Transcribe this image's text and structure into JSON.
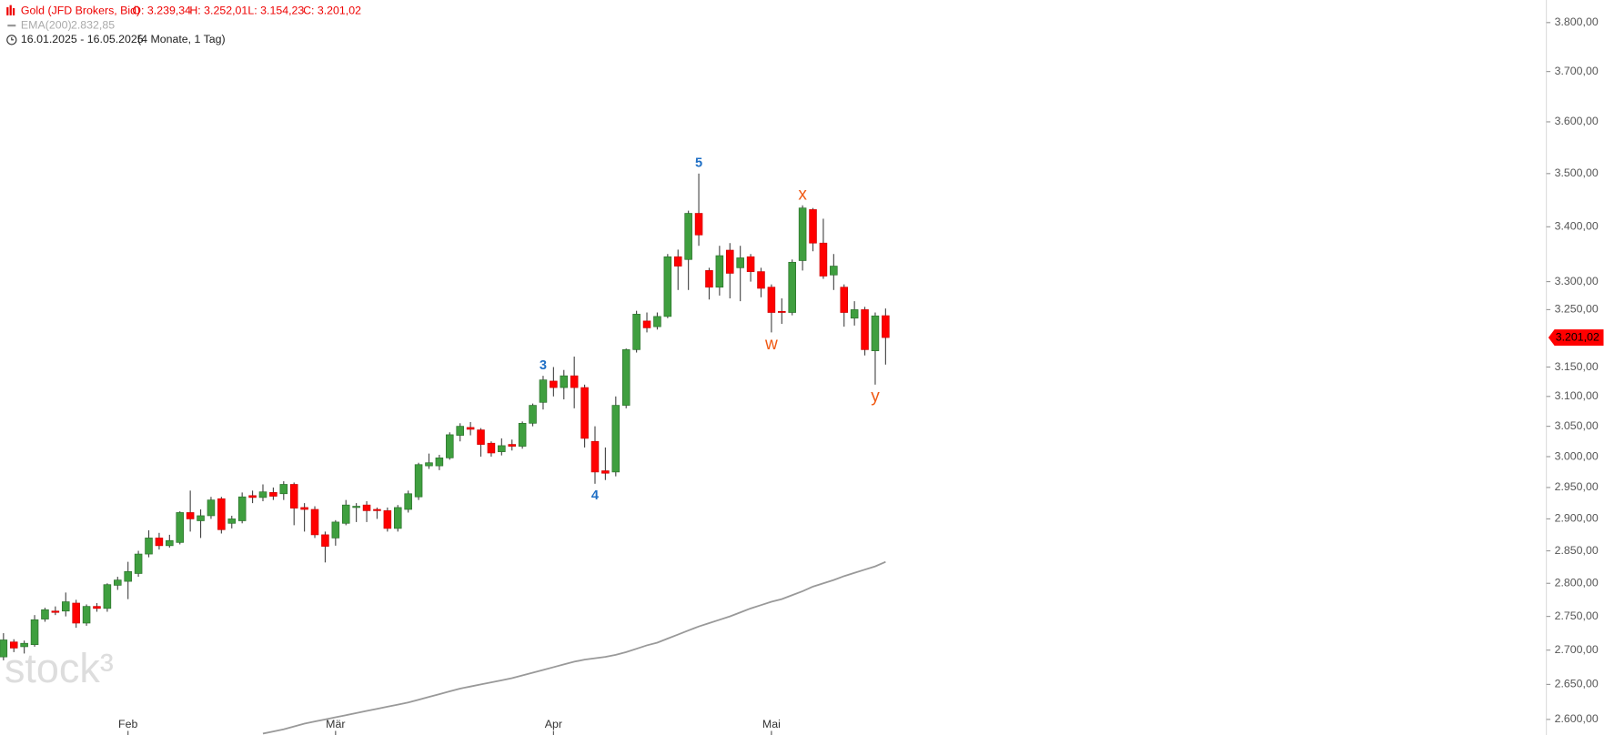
{
  "chart_data": {
    "type": "candlestick",
    "title": "Gold (JFD Brokers, Bid)",
    "ohlc_labels": [
      "O: 3.239,34",
      "H: 3.252,01",
      "L: 3.154,23",
      "C: 3.201,02"
    ],
    "period": "16.01.2025 - 16.05.2025",
    "period_note": "(4 Monate, 1 Tag)",
    "watermark": "stock³",
    "log_scale": true,
    "grid": false,
    "up_color": "#3f9f3f",
    "down_color": "#ff0000",
    "categories": [
      null,
      null,
      null,
      null,
      null,
      null,
      null,
      null,
      null,
      null,
      null,
      null,
      "Feb",
      null,
      null,
      null,
      null,
      null,
      null,
      null,
      null,
      null,
      null,
      null,
      null,
      null,
      null,
      null,
      null,
      null,
      null,
      null,
      "Mär",
      null,
      null,
      null,
      null,
      null,
      null,
      null,
      null,
      null,
      null,
      null,
      null,
      null,
      null,
      null,
      null,
      null,
      null,
      null,
      null,
      "Apr",
      null,
      null,
      null,
      null,
      null,
      null,
      null,
      null,
      null,
      null,
      null,
      null,
      null,
      null,
      null,
      null,
      null,
      null,
      null,
      null,
      "Mai",
      null,
      null,
      null,
      null,
      null,
      null,
      null,
      null,
      null,
      null,
      null
    ],
    "open": [
      2690,
      2712,
      2705,
      2708,
      2746,
      2758,
      2758,
      2770,
      2740,
      2765,
      2762,
      2797,
      2803,
      2815,
      2845,
      2870,
      2858,
      2863,
      2910,
      2897,
      2905,
      2932,
      2893,
      2897,
      2937,
      2934,
      2942,
      2940,
      2955,
      2918,
      2915,
      2875,
      2870,
      2893,
      2918,
      2922,
      2915,
      2913,
      2885,
      2915,
      2935,
      2985,
      2985,
      2998,
      3035,
      3048,
      3044,
      3022,
      3008,
      3020,
      3017,
      3055,
      3090,
      3126,
      3115,
      3135,
      3115,
      3025,
      2977,
      2975,
      3085,
      3180,
      3230,
      3220,
      3238,
      3345,
      3340,
      3425,
      3320,
      3290,
      3357,
      3325,
      3345,
      3318,
      3290,
      3247,
      3245,
      3338,
      3432,
      3370,
      3312,
      3290,
      3235,
      3250,
      3178,
      3239.34
    ],
    "high": [
      2725,
      2716,
      2714,
      2752,
      2763,
      2765,
      2786,
      2775,
      2768,
      2770,
      2800,
      2810,
      2833,
      2850,
      2882,
      2878,
      2875,
      2912,
      2945,
      2915,
      2935,
      2935,
      2905,
      2942,
      2945,
      2955,
      2950,
      2960,
      2958,
      2925,
      2920,
      2880,
      2898,
      2930,
      2925,
      2928,
      2918,
      2918,
      2922,
      2945,
      2990,
      3005,
      3003,
      3040,
      3055,
      3057,
      3047,
      3025,
      3030,
      3028,
      3058,
      3088,
      3135,
      3150,
      3145,
      3168,
      3120,
      3050,
      3015,
      3100,
      3182,
      3248,
      3245,
      3245,
      3350,
      3358,
      3430,
      3500,
      3325,
      3365,
      3370,
      3365,
      3350,
      3325,
      3295,
      3270,
      3340,
      3440,
      3435,
      3415,
      3350,
      3295,
      3265,
      3255,
      3245,
      3252.01
    ],
    "low": [
      2685,
      2697,
      2695,
      2705,
      2742,
      2752,
      2750,
      2733,
      2736,
      2757,
      2757,
      2790,
      2776,
      2810,
      2840,
      2852,
      2855,
      2860,
      2880,
      2870,
      2900,
      2877,
      2885,
      2893,
      2925,
      2928,
      2930,
      2930,
      2890,
      2880,
      2870,
      2832,
      2858,
      2890,
      2895,
      2895,
      2900,
      2880,
      2880,
      2910,
      2930,
      2980,
      2978,
      2995,
      3025,
      3035,
      3000,
      3000,
      3002,
      3010,
      3013,
      3050,
      3078,
      3100,
      3095,
      3080,
      3015,
      2956,
      2962,
      2968,
      3080,
      3175,
      3210,
      3215,
      3235,
      3285,
      3285,
      3365,
      3268,
      3275,
      3270,
      3265,
      3300,
      3272,
      3210,
      3225,
      3240,
      3320,
      3355,
      3305,
      3285,
      3220,
      3222,
      3170,
      3120,
      3154.23
    ],
    "close": [
      2715,
      2703,
      2710,
      2745,
      2760,
      2756,
      2772,
      2740,
      2765,
      2762,
      2798,
      2805,
      2818,
      2845,
      2870,
      2858,
      2866,
      2910,
      2900,
      2905,
      2930,
      2883,
      2900,
      2935,
      2934,
      2943,
      2936,
      2955,
      2917,
      2915,
      2875,
      2857,
      2895,
      2922,
      2920,
      2913,
      2913,
      2885,
      2918,
      2940,
      2987,
      2990,
      2998,
      3036,
      3050,
      3045,
      3020,
      3006,
      3018,
      3017,
      3055,
      3085,
      3128,
      3115,
      3135,
      3115,
      3030,
      2975,
      2973,
      3085,
      3180,
      3242,
      3218,
      3238,
      3345,
      3328,
      3425,
      3385,
      3290,
      3347,
      3315,
      3343,
      3318,
      3288,
      3245,
      3245,
      3335,
      3435,
      3370,
      3310,
      3328,
      3245,
      3250,
      3180,
      3239,
      3201.02
    ],
    "overlay": {
      "name": "EMA(200)",
      "value_label": "2.832,85",
      "color": "#999999",
      "values": [
        null,
        null,
        null,
        null,
        null,
        null,
        null,
        null,
        null,
        null,
        null,
        null,
        null,
        null,
        null,
        null,
        null,
        null,
        null,
        null,
        null,
        null,
        null,
        null,
        null,
        2580,
        2583,
        2586,
        2590,
        2594,
        2597,
        2600,
        2603,
        2606,
        2609,
        2612,
        2615,
        2618,
        2621,
        2624,
        2628,
        2632,
        2636,
        2640,
        2644,
        2647,
        2650,
        2653,
        2656,
        2659,
        2663,
        2667,
        2671,
        2675,
        2679,
        2683,
        2686,
        2688,
        2690,
        2693,
        2697,
        2702,
        2707,
        2711,
        2717,
        2723,
        2729,
        2735,
        2740,
        2745,
        2750,
        2756,
        2762,
        2767,
        2772,
        2776,
        2782,
        2788,
        2795,
        2800,
        2805,
        2811,
        2816,
        2821,
        2826,
        2832.85
      ]
    },
    "last_label": "3.201,02",
    "ylim": [
      2578,
      3847
    ],
    "yticks": [
      {
        "value": 2600,
        "label": "2.600,00"
      },
      {
        "value": 2650,
        "label": "2.650,00"
      },
      {
        "value": 2700,
        "label": "2.700,00"
      },
      {
        "value": 2750,
        "label": "2.750,00"
      },
      {
        "value": 2800,
        "label": "2.800,00"
      },
      {
        "value": 2850,
        "label": "2.850,00"
      },
      {
        "value": 2900,
        "label": "2.900,00"
      },
      {
        "value": 2950,
        "label": "2.950,00"
      },
      {
        "value": 3000,
        "label": "3.000,00"
      },
      {
        "value": 3050,
        "label": "3.050,00"
      },
      {
        "value": 3100,
        "label": "3.100,00"
      },
      {
        "value": 3150,
        "label": "3.150,00"
      },
      {
        "value": 3250,
        "label": "3.250,00"
      },
      {
        "value": 3300,
        "label": "3.300,00"
      },
      {
        "value": 3400,
        "label": "3.400,00"
      },
      {
        "value": 3500,
        "label": "3.500,00"
      },
      {
        "value": 3600,
        "label": "3.600,00"
      },
      {
        "value": 3700,
        "label": "3.700,00"
      },
      {
        "value": 3800,
        "label": "3.800,00"
      }
    ],
    "annotations": [
      {
        "text": "3",
        "at": 52,
        "side": "above",
        "color": "#1f6fc5"
      },
      {
        "text": "4",
        "at": 57,
        "side": "below",
        "color": "#1f6fc5"
      },
      {
        "text": "5",
        "at": 67,
        "side": "above",
        "color": "#1f6fc5"
      },
      {
        "text": "w",
        "at": 74,
        "side": "below",
        "color": "#f05a14"
      },
      {
        "text": "x",
        "at": 77,
        "side": "above",
        "color": "#f05a14"
      },
      {
        "text": "y",
        "at": 84,
        "side": "below",
        "color": "#f05a14"
      }
    ]
  }
}
